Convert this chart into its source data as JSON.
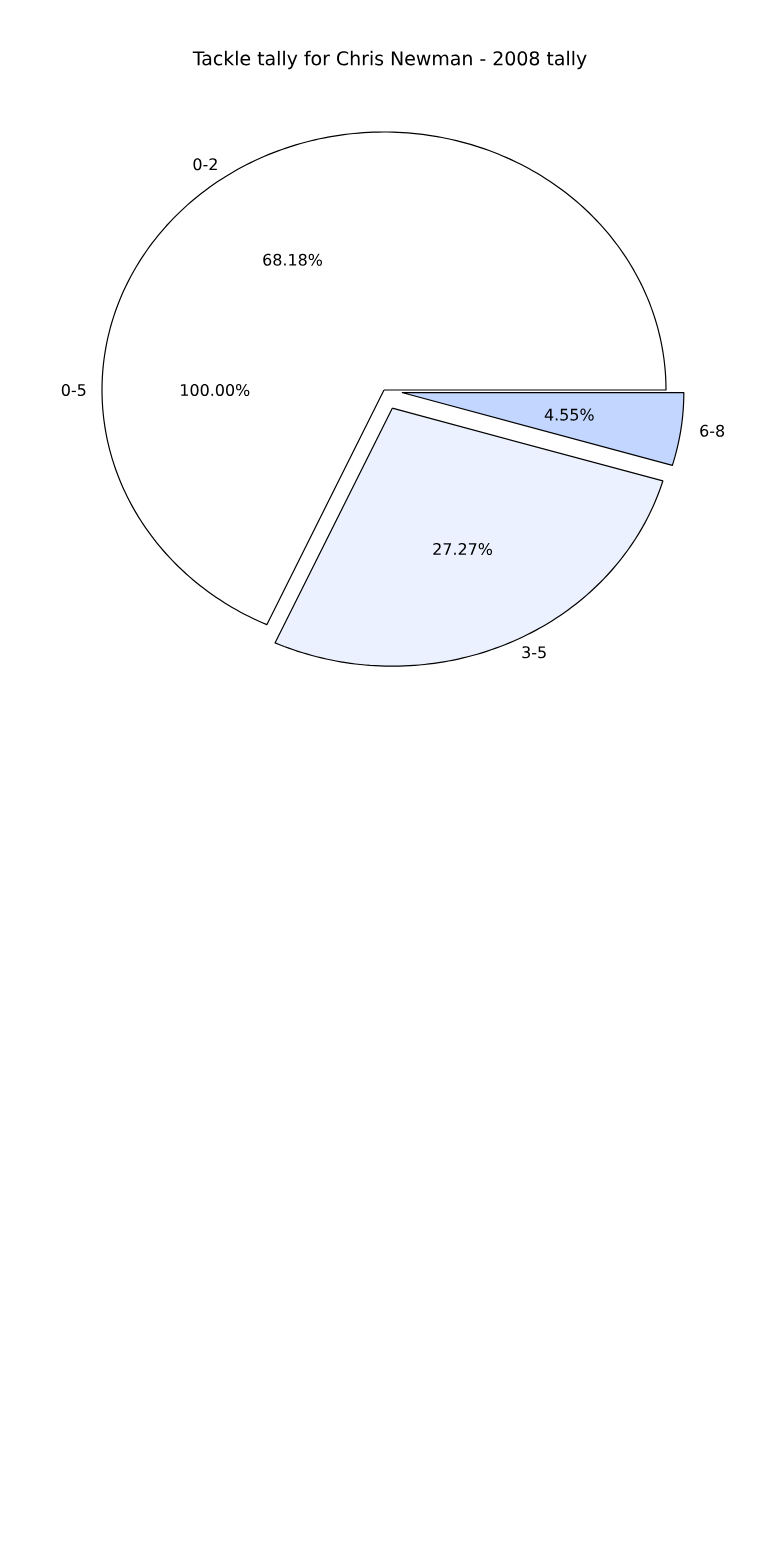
{
  "chart_data": {
    "type": "pie",
    "title": "Tackle tally for Chris Newman - 2008 tally",
    "categories": [
      "0-2",
      "3-5",
      "6-8"
    ],
    "values": [
      68.18,
      27.27,
      4.55
    ],
    "colors": [
      "#ffffff",
      "#ebf1ff",
      "#c2d6ff"
    ],
    "value_labels": [
      "68.18%",
      "27.27%",
      "4.55%"
    ],
    "annotations": [
      "0-5",
      "100.00%"
    ]
  }
}
